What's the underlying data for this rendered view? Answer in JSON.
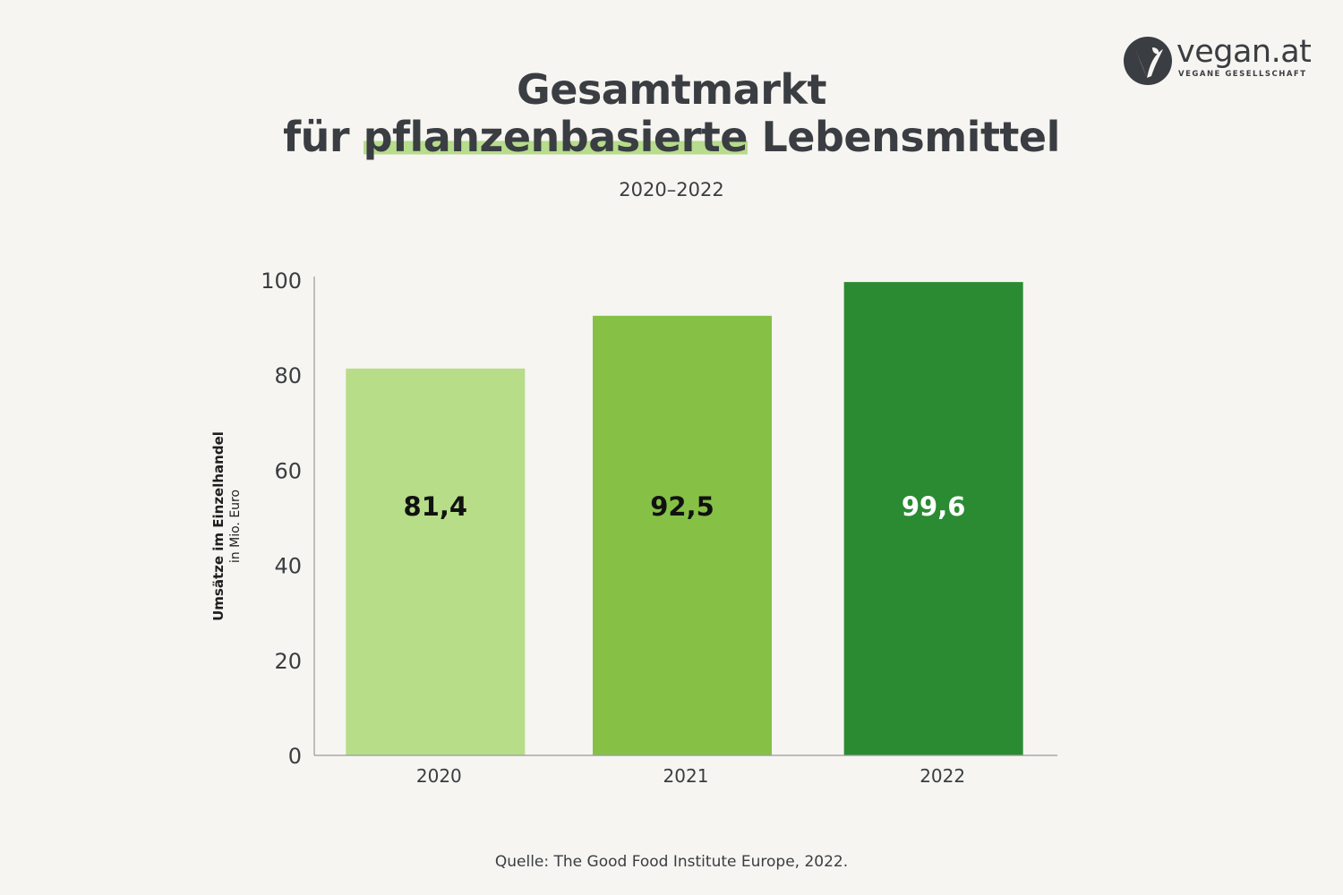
{
  "logo": {
    "name": "vegan.at",
    "tagline": "VEGANE GESELLSCHAFT"
  },
  "title": {
    "line1": "Gesamtmarkt",
    "line2_prefix": "für ",
    "line2_highlight": "pflanzenbasierte",
    "line2_suffix": " Lebensmittel"
  },
  "subtitle": "2020–2022",
  "source": "Quelle: The Good Food Institute Europe, 2022.",
  "colors": {
    "background": "#f6f5f1",
    "text": "#3a3d42",
    "highlight": "#b6dc8c"
  },
  "chart_data": {
    "type": "bar",
    "title": "Gesamtmarkt für pflanzenbasierte Lebensmittel",
    "subtitle": "2020–2022",
    "categories": [
      "2020",
      "2021",
      "2022"
    ],
    "values": [
      81.4,
      92.5,
      99.6
    ],
    "value_labels": [
      "81,4",
      "92,5",
      "99,6"
    ],
    "bar_colors": [
      "#b7dd88",
      "#86c146",
      "#2a8b32"
    ],
    "value_label_colors": [
      "#111111",
      "#111111",
      "#ffffff"
    ],
    "ylabel": "Umsätze im Einzelhandel",
    "yunit": "in Mio. Euro",
    "xlabel": "",
    "ylim": [
      0,
      100
    ],
    "yticks": [
      0,
      20,
      40,
      60,
      80,
      100
    ],
    "grid": false,
    "legend": "none"
  }
}
